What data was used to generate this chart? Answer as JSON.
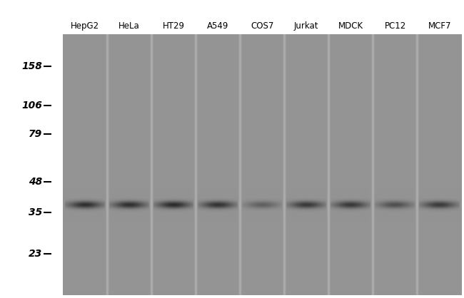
{
  "lane_labels": [
    "HepG2",
    "HeLa",
    "HT29",
    "A549",
    "COS7",
    "Jurkat",
    "MDCK",
    "PC12",
    "MCF7"
  ],
  "mw_markers": [
    158,
    106,
    79,
    48,
    35,
    23
  ],
  "band_mw": 38,
  "band_intensities": [
    0.88,
    0.88,
    0.92,
    0.85,
    0.45,
    0.8,
    0.8,
    0.6,
    0.78
  ],
  "gel_bg_color": [
    155,
    155,
    155
  ],
  "lane_bg_color": [
    148,
    148,
    148
  ],
  "separator_color": [
    175,
    175,
    175
  ],
  "band_color": [
    30,
    30,
    30
  ],
  "label_color": "#000000",
  "marker_color": "#000000",
  "fig_bg_color": "#ffffff",
  "fig_width": 6.5,
  "fig_height": 4.18,
  "dpi": 100,
  "y_min": 15,
  "y_max": 220,
  "num_lanes": 9,
  "label_fontsize": 8.5,
  "marker_fontsize": 10
}
